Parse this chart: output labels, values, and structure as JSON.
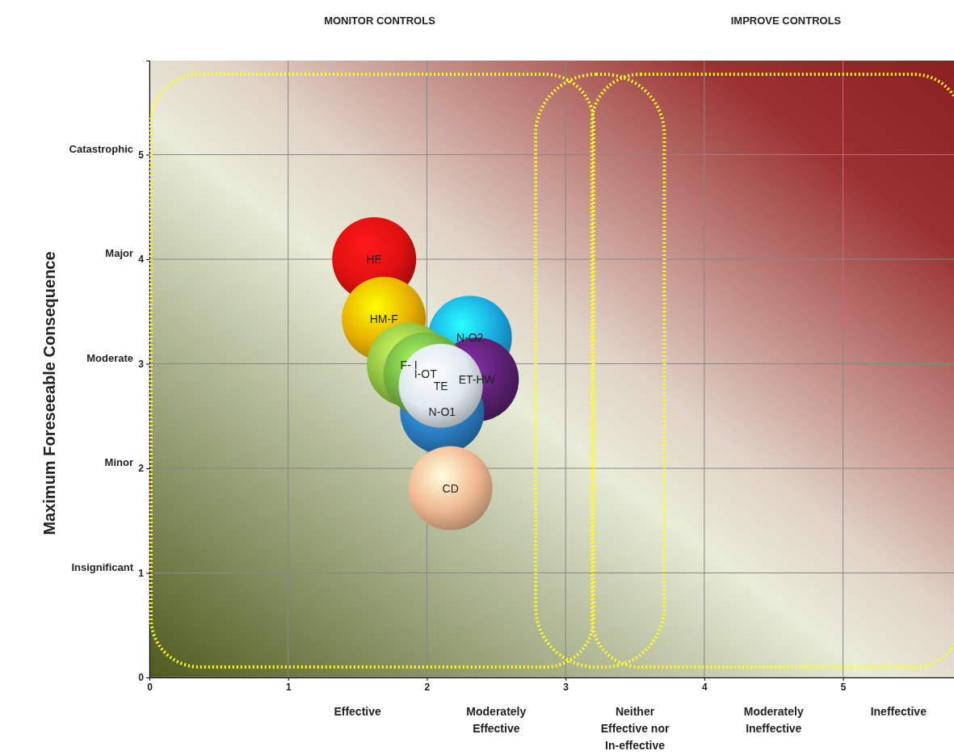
{
  "chart_data": {
    "type": "bubble",
    "ylabel": "Maximum Foreseeable Consequence",
    "xlim": [
      0,
      5.8
    ],
    "ylim": [
      0,
      5.9
    ],
    "xticks": [
      0,
      1,
      2,
      3,
      4,
      5
    ],
    "yticks": [
      0,
      1,
      2,
      3,
      4,
      5
    ],
    "grid": true,
    "series": [
      {
        "name": "HE",
        "color": "#e01010",
        "x": [
          1.62
        ],
        "values": [
          4.0
        ],
        "sizes": [
          1
        ]
      },
      {
        "name": "HM-F",
        "color": "#e8b000",
        "x": [
          1.69
        ],
        "values": [
          3.43
        ],
        "sizes": [
          1
        ]
      },
      {
        "name": "N-O2",
        "color": "#1aa8e0",
        "x": [
          2.31
        ],
        "values": [
          3.25
        ],
        "sizes": [
          1
        ]
      },
      {
        "name": "ET-HW",
        "color": "#5a2070",
        "x": [
          2.36
        ],
        "values": [
          2.85
        ],
        "sizes": [
          1
        ]
      },
      {
        "name": "F- I",
        "color": "#8cc040",
        "x": [
          1.87
        ],
        "values": [
          2.99
        ],
        "sizes": [
          1
        ]
      },
      {
        "name": "N-O1",
        "color": "#2a7cc0",
        "x": [
          2.11
        ],
        "values": [
          2.54
        ],
        "sizes": [
          1
        ]
      },
      {
        "name": "I-OT",
        "color": "#70b040",
        "x": [
          1.99
        ],
        "values": [
          2.9
        ],
        "sizes": [
          1
        ]
      },
      {
        "name": "TE",
        "color": "#dfe8ef",
        "x": [
          2.1
        ],
        "values": [
          2.79
        ],
        "sizes": [
          1
        ]
      },
      {
        "name": "CD",
        "color": "#f0b890",
        "x": [
          2.17
        ],
        "values": [
          1.81
        ],
        "sizes": [
          1
        ]
      }
    ],
    "annotations": [
      "MONITOR CONTROLS",
      "IMPROVE CONTROLS",
      "Catastrophic",
      "Major",
      "Moderate",
      "Minor",
      "Insignificant",
      "Effective",
      "Moderately\nEffective",
      "Neither\nEffective nor\nIn-effective",
      "Moderately\nIneffective",
      "Ineffective"
    ]
  }
}
